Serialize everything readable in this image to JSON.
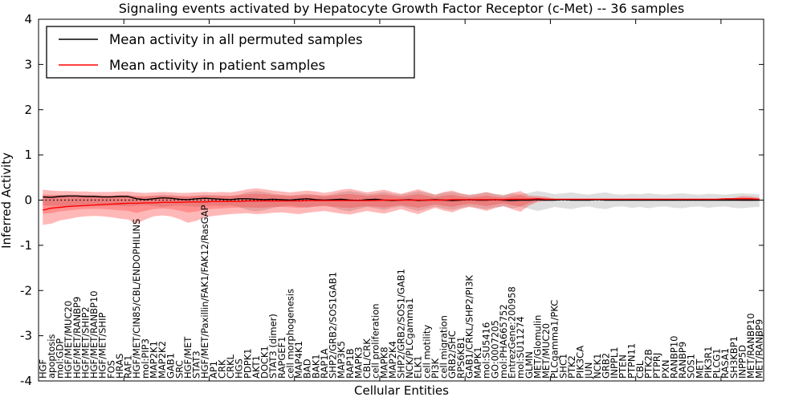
{
  "chart_data": {
    "type": "line",
    "title": "Signaling events activated by Hepatocyte Growth Factor Receptor (c-Met) -- 36 samples",
    "xlabel": "Cellular Entities",
    "ylabel": "Inferred Activity",
    "ylim": [
      -4,
      4
    ],
    "yticks": [
      -4,
      -3,
      -2,
      -1,
      0,
      1,
      2,
      3,
      4
    ],
    "xtick_interval": 10,
    "grid": false,
    "zero_line": 0,
    "legend": {
      "position": "upper left",
      "entries": [
        {
          "label": "Mean activity in all permuted samples",
          "color": "#000000"
        },
        {
          "label": "Mean activity in patient samples",
          "color": "#ff0000"
        }
      ]
    },
    "colors": {
      "permuted_line": "#000000",
      "patient_line": "#ff0000",
      "permuted_band": "rgba(0,0,0,0.13)",
      "patient_band": "rgba(255,0,0,0.28)",
      "axis": "#000000"
    },
    "categories": [
      "HGF",
      "apoptosis",
      "mol:GDP",
      "HGF/MET/MUC20",
      "HGF/MET/RANBP9",
      "HGF/MET/SHIP2",
      "HGF/MET/RANBP10",
      "HGF/MET/SHIP",
      "FOS",
      "HRAS",
      "RAF1",
      "HGF/MET/CIN85/CBL/ENDOPHILINS",
      "mol:PIP3",
      "MAP2K1",
      "MAP2K2",
      "GAB1",
      "SRC",
      "HGF/MET",
      "STAT3",
      "HGF/MET/Paxillin/FAK1/FAK12/RasGAP",
      "AP1",
      "CRK",
      "CRKL",
      "HGS",
      "PDPK1",
      "AKT1",
      "DOCK1",
      "STAT3 (dimer)",
      "RAPGEF1",
      "cell morphogenesis",
      "MAP4K1",
      "BAD",
      "BAK1",
      "RAP1A",
      "SHP2/GRB2/SOS1GAB1",
      "MAP3K5",
      "RAP1B",
      "MAPK3",
      "CBL/CRK",
      "cell proliferation",
      "MAPK8",
      "MAP2K4",
      "SHP2/GRB2/SOS1/GAB1",
      "NCK/PLCgamma1",
      "ELK1",
      "cell motility",
      "PI3K",
      "cell migration",
      "GRB2/SHC",
      "RPS6KB1",
      "GAB1/CRKL/SHP2/PI3K",
      "MAPK1",
      "mol:SU5416",
      "GO:0007205",
      "mol:PHA665752",
      "EntrezGene:200958",
      "mol:SU11274",
      "GLMN",
      "MET/Glomulin",
      "MET/MUC20",
      "PLCgamma1/PKC",
      "SHC1",
      "PTK2",
      "PIK3CA",
      "JUN",
      "NCK1",
      "GRB2",
      "INPPL1",
      "PTEN",
      "PTPN11",
      "CBL",
      "PTK2B",
      "PTPRJ",
      "PXN",
      "RANBP10",
      "RANBP9",
      "SOS1",
      "MET",
      "PIK3R1",
      "PLCG1",
      "RASA1",
      "SH3KBP1",
      "INPP5D",
      "MET/RANBP10",
      "MET/RANBP9"
    ],
    "series": [
      {
        "name": "Mean activity in all permuted samples",
        "color": "#000000",
        "values": [
          0.07,
          0.06,
          0.08,
          0.09,
          0.09,
          0.08,
          0.08,
          0.07,
          0.07,
          0.08,
          0.08,
          0.03,
          0.01,
          0.03,
          0.05,
          0.04,
          0.02,
          0.01,
          0.03,
          0.04,
          0.03,
          0.02,
          0.01,
          0.03,
          0.03,
          0.02,
          0.01,
          0.02,
          0.01,
          0.0,
          0.02,
          0.03,
          0.01,
          0.0,
          0.01,
          0.02,
          0.0,
          -0.01,
          0.01,
          0.02,
          0.0,
          -0.01,
          0.0,
          0.01,
          -0.01,
          0.0,
          0.01,
          0.0,
          -0.01,
          0.0,
          0.01,
          0.0,
          0.0,
          0.01,
          0.0,
          -0.01,
          0.0,
          0.0,
          0.01,
          0.0,
          0.0,
          0.01,
          0.0,
          0.0,
          0.0,
          0.01,
          0.0,
          0.0,
          0.0,
          0.0,
          0.0,
          0.0,
          0.0,
          0.0,
          0.0,
          0.0,
          0.0,
          0.0,
          0.0,
          0.0,
          0.0,
          0.0,
          0.0,
          0.0,
          0.0
        ]
      },
      {
        "name": "Mean activity in patient samples",
        "color": "#ff0000",
        "values": [
          -0.22,
          -0.18,
          -0.16,
          -0.14,
          -0.13,
          -0.12,
          -0.11,
          -0.1,
          -0.09,
          -0.08,
          -0.07,
          -0.07,
          -0.06,
          -0.06,
          -0.05,
          -0.05,
          -0.05,
          -0.04,
          -0.04,
          -0.04,
          -0.03,
          -0.03,
          -0.03,
          -0.03,
          -0.02,
          -0.02,
          -0.02,
          -0.02,
          -0.02,
          -0.02,
          -0.02,
          -0.01,
          -0.01,
          -0.01,
          -0.01,
          -0.01,
          -0.01,
          -0.01,
          -0.01,
          -0.01,
          0.0,
          0.0,
          0.0,
          0.0,
          0.0,
          0.0,
          0.0,
          0.0,
          0.01,
          0.01,
          0.01,
          0.01,
          0.01,
          0.01,
          0.01,
          0.02,
          0.02,
          0.02,
          0.03,
          0.02,
          0.02,
          0.02,
          0.02,
          0.02,
          0.02,
          0.02,
          0.02,
          0.02,
          0.02,
          0.02,
          0.02,
          0.02,
          0.02,
          0.02,
          0.02,
          0.02,
          0.02,
          0.02,
          0.02,
          0.02,
          0.03,
          0.03,
          0.03,
          0.03,
          0.02
        ]
      }
    ],
    "bands": [
      {
        "name": "permuted-activity-range",
        "upper": [
          0.1,
          0.1,
          0.11,
          0.12,
          0.12,
          0.11,
          0.11,
          0.1,
          0.1,
          0.11,
          0.11,
          0.08,
          0.08,
          0.1,
          0.12,
          0.11,
          0.09,
          0.08,
          0.1,
          0.12,
          0.11,
          0.1,
          0.09,
          0.12,
          0.18,
          0.2,
          0.18,
          0.14,
          0.12,
          0.1,
          0.12,
          0.14,
          0.12,
          0.1,
          0.13,
          0.18,
          0.2,
          0.17,
          0.13,
          0.15,
          0.18,
          0.14,
          0.12,
          0.16,
          0.2,
          0.16,
          0.12,
          0.16,
          0.18,
          0.14,
          0.12,
          0.14,
          0.17,
          0.14,
          0.12,
          0.15,
          0.13,
          0.16,
          0.2,
          0.17,
          0.13,
          0.15,
          0.17,
          0.14,
          0.12,
          0.15,
          0.17,
          0.13,
          0.12,
          0.14,
          0.13,
          0.15,
          0.13,
          0.12,
          0.14,
          0.15,
          0.13,
          0.12,
          0.14,
          0.13,
          0.12,
          0.14,
          0.15,
          0.14,
          0.13
        ],
        "lower": [
          -0.12,
          -0.12,
          -0.13,
          -0.14,
          -0.13,
          -0.12,
          -0.12,
          -0.13,
          -0.12,
          -0.13,
          -0.14,
          -0.12,
          -0.11,
          -0.13,
          -0.15,
          -0.13,
          -0.12,
          -0.13,
          -0.15,
          -0.14,
          -0.12,
          -0.13,
          -0.12,
          -0.15,
          -0.22,
          -0.25,
          -0.22,
          -0.17,
          -0.14,
          -0.12,
          -0.15,
          -0.17,
          -0.14,
          -0.12,
          -0.16,
          -0.22,
          -0.25,
          -0.2,
          -0.15,
          -0.18,
          -0.22,
          -0.17,
          -0.14,
          -0.19,
          -0.24,
          -0.19,
          -0.14,
          -0.19,
          -0.22,
          -0.17,
          -0.14,
          -0.17,
          -0.2,
          -0.16,
          -0.14,
          -0.18,
          -0.15,
          -0.19,
          -0.24,
          -0.2,
          -0.15,
          -0.18,
          -0.2,
          -0.16,
          -0.14,
          -0.18,
          -0.2,
          -0.15,
          -0.14,
          -0.17,
          -0.15,
          -0.18,
          -0.15,
          -0.14,
          -0.17,
          -0.18,
          -0.15,
          -0.14,
          -0.17,
          -0.15,
          -0.14,
          -0.17,
          -0.18,
          -0.16,
          -0.15
        ]
      },
      {
        "name": "patient-activity-range",
        "upper": [
          0.23,
          0.21,
          0.2,
          0.2,
          0.19,
          0.19,
          0.18,
          0.18,
          0.18,
          0.19,
          0.19,
          0.17,
          0.16,
          0.17,
          0.18,
          0.17,
          0.16,
          0.16,
          0.17,
          0.18,
          0.17,
          0.18,
          0.17,
          0.2,
          0.24,
          0.26,
          0.24,
          0.21,
          0.19,
          0.17,
          0.19,
          0.21,
          0.19,
          0.16,
          0.19,
          0.23,
          0.25,
          0.21,
          0.17,
          0.2,
          0.23,
          0.18,
          0.14,
          0.19,
          0.24,
          0.18,
          0.12,
          0.18,
          0.21,
          0.15,
          0.11,
          0.14,
          0.18,
          0.13,
          0.1,
          0.16,
          0.2,
          0.1,
          0.09,
          0.07,
          0.03,
          null,
          null,
          null,
          null,
          null,
          null,
          null,
          null,
          null,
          null,
          null,
          null,
          null,
          null,
          null,
          null,
          null,
          null,
          null,
          0.03,
          0.05,
          0.09,
          0.08,
          0.05
        ],
        "lower": [
          -0.55,
          -0.52,
          -0.45,
          -0.42,
          -0.38,
          -0.36,
          -0.35,
          -0.36,
          -0.38,
          -0.41,
          -0.43,
          -0.52,
          -0.43,
          -0.36,
          -0.34,
          -0.36,
          -0.42,
          -0.5,
          -0.46,
          -0.38,
          -0.35,
          -0.33,
          -0.31,
          -0.3,
          -0.29,
          -0.31,
          -0.3,
          -0.28,
          -0.27,
          -0.29,
          -0.31,
          -0.28,
          -0.26,
          -0.24,
          -0.27,
          -0.3,
          -0.32,
          -0.28,
          -0.24,
          -0.27,
          -0.3,
          -0.25,
          -0.2,
          -0.26,
          -0.31,
          -0.24,
          -0.17,
          -0.23,
          -0.27,
          -0.2,
          -0.15,
          -0.19,
          -0.24,
          -0.18,
          -0.13,
          -0.2,
          -0.26,
          -0.12,
          -0.04,
          -0.02,
          -0.01,
          null,
          null,
          null,
          null,
          null,
          null,
          null,
          null,
          null,
          null,
          null,
          null,
          null,
          null,
          null,
          null,
          null,
          null,
          null,
          -0.01,
          -0.01,
          -0.02,
          -0.02,
          -0.01
        ]
      }
    ]
  }
}
